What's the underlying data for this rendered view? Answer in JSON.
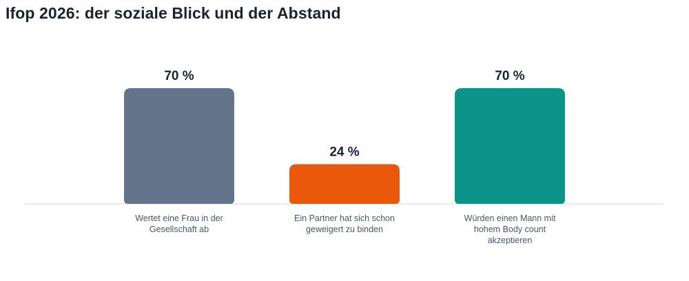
{
  "title": "Ifop 2026: der soziale Blick und der Abstand",
  "chart_data": {
    "type": "bar",
    "title": "Ifop 2026: der soziale Blick und der Abstand",
    "categories": [
      "Wertet eine Frau in der Gesellschaft ab",
      "Ein Partner hat sich schon geweigert zu binden",
      "Würden einen Mann mit hohem Body count akzeptieren"
    ],
    "values": [
      70,
      24,
      70
    ],
    "value_labels": [
      "70 %",
      "24 %",
      "70 %"
    ],
    "colors": [
      "#64748b",
      "#ea580c",
      "#0d9488"
    ],
    "ylim": [
      0,
      70
    ],
    "grid": false,
    "xlabel": "",
    "ylabel": ""
  }
}
